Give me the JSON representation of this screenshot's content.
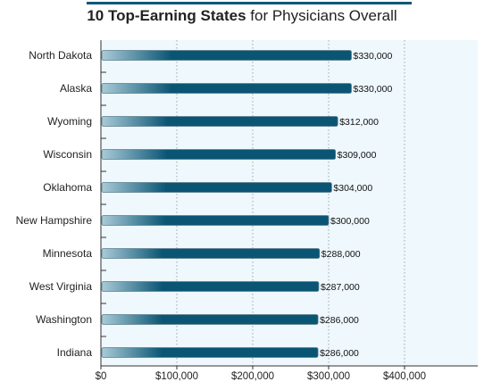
{
  "chart_data": {
    "type": "bar",
    "orientation": "horizontal",
    "title_bold": "10 Top-Earning States",
    "title_rest": " for Physicians Overall",
    "xlabel": "",
    "ylabel": "",
    "xlim": [
      0,
      500000
    ],
    "grid": "vertical dotted",
    "colors": {
      "bar_dark": "#0a5574",
      "bar_light": "#a9cbd8",
      "plot_bg": "#eef8fd",
      "axis": "#333333",
      "grid": "#9aa9b0"
    },
    "categories": [
      "North Dakota",
      "Alaska",
      "Wyoming",
      "Wisconsin",
      "Oklahoma",
      "New Hampshire",
      "Minnesota",
      "West Virginia",
      "Washington",
      "Indiana"
    ],
    "values": [
      330000,
      330000,
      312000,
      309000,
      304000,
      300000,
      288000,
      287000,
      286000,
      286000
    ],
    "value_labels": [
      "$330,000",
      "$330,000",
      "$312,000",
      "$309,000",
      "$304,000",
      "$300,000",
      "$288,000",
      "$287,000",
      "$286,000",
      "$286,000"
    ],
    "x_ticks": [
      0,
      100000,
      200000,
      300000,
      400000
    ],
    "x_tick_labels": [
      "$0",
      "$100,000",
      "$200,000",
      "$300,000",
      "$400,000"
    ]
  }
}
